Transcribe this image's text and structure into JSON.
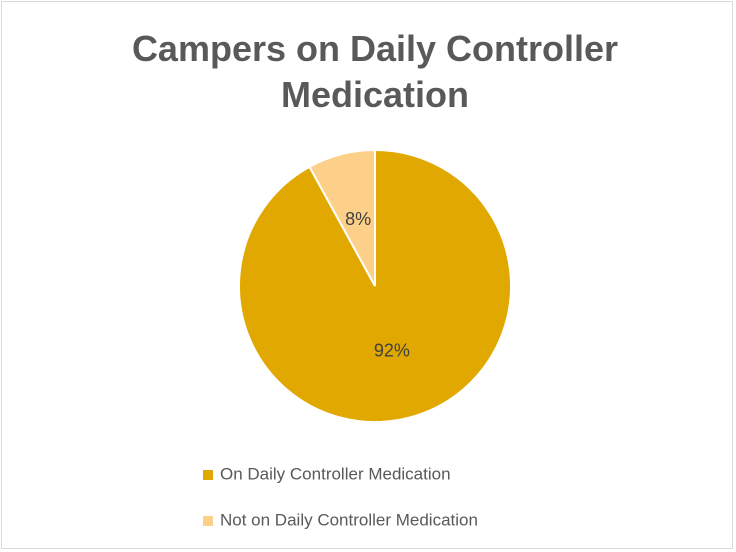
{
  "chart_data": {
    "type": "pie",
    "title": "Campers on Daily Controller Medication",
    "categories": [
      "On Daily Controller Medication",
      "Not on Daily Controller Medication"
    ],
    "values": [
      92,
      8
    ],
    "value_labels": [
      "92%",
      "8%"
    ],
    "colors": [
      "#e0a800",
      "#fdd08a"
    ],
    "legend": "bottom"
  }
}
